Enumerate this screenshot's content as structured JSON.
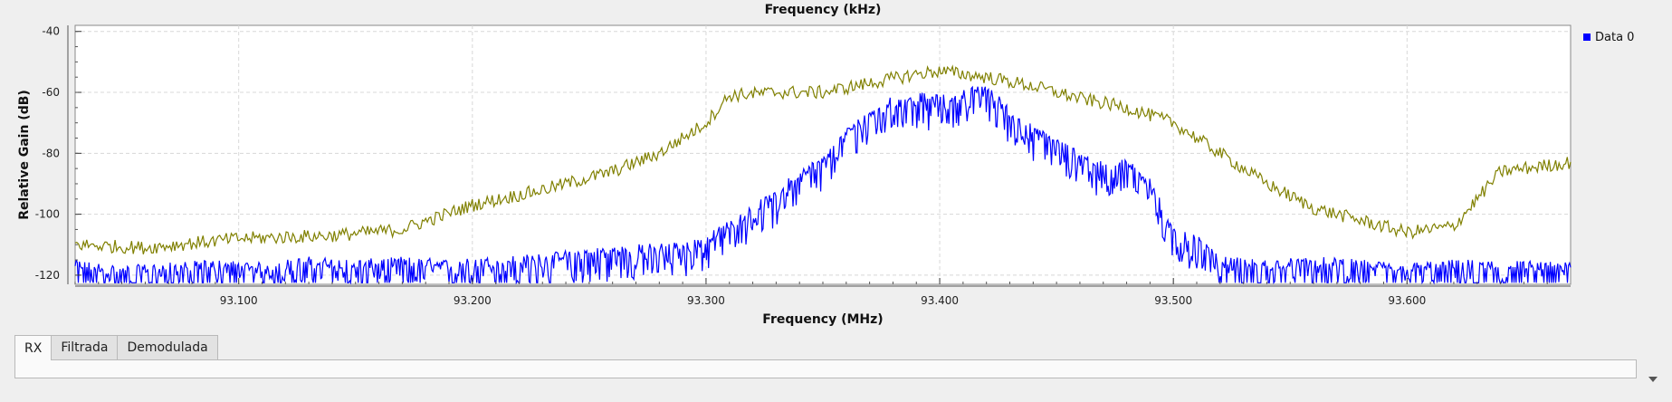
{
  "chart_data": {
    "type": "line",
    "title": "Frequency (kHz)",
    "xlabel": "Frequency (MHz)",
    "ylabel": "Relative Gain (dB)",
    "xlim": [
      93.03,
      93.67
    ],
    "ylim": [
      -123,
      -38
    ],
    "x_ticks": [
      93.1,
      93.2,
      93.3,
      93.4,
      93.5,
      93.6
    ],
    "x_tick_labels": [
      "93.100",
      "93.200",
      "93.300",
      "93.400",
      "93.500",
      "93.600"
    ],
    "y_ticks": [
      -40,
      -60,
      -80,
      -100,
      -120
    ],
    "y_tick_labels": [
      "-40",
      "-60",
      "-80",
      "-100",
      "-120"
    ],
    "grid": true,
    "legend": {
      "placement": "top-right",
      "entries": [
        "Data 0"
      ]
    },
    "series": [
      {
        "name": "Data 0",
        "color": "#0000ff",
        "x": [
          93.03,
          93.05,
          93.07,
          93.09,
          93.11,
          93.13,
          93.15,
          93.17,
          93.19,
          93.21,
          93.23,
          93.25,
          93.27,
          93.29,
          93.3,
          93.31,
          93.32,
          93.33,
          93.34,
          93.35,
          93.36,
          93.37,
          93.38,
          93.39,
          93.4,
          93.41,
          93.42,
          93.43,
          93.44,
          93.45,
          93.46,
          93.47,
          93.48,
          93.49,
          93.5,
          93.51,
          93.52,
          93.54,
          93.56,
          93.58,
          93.6,
          93.62,
          93.64,
          93.67
        ],
        "y": [
          -118,
          -120,
          -119,
          -118,
          -119,
          -117,
          -118,
          -117,
          -118,
          -117,
          -116,
          -114,
          -113,
          -112,
          -110,
          -105,
          -100,
          -95,
          -88,
          -84,
          -75,
          -68,
          -64,
          -63,
          -64,
          -62,
          -60,
          -68,
          -74,
          -78,
          -82,
          -86,
          -85,
          -90,
          -108,
          -110,
          -117,
          -118,
          -117,
          -118,
          -119,
          -118,
          -118,
          -119
        ]
      },
      {
        "name": "",
        "color": "#808000",
        "x": [
          93.03,
          93.06,
          93.1,
          93.14,
          93.17,
          93.2,
          93.23,
          93.26,
          93.28,
          93.3,
          93.31,
          93.33,
          93.35,
          93.37,
          93.39,
          93.4,
          93.42,
          93.44,
          93.46,
          93.48,
          93.5,
          93.52,
          93.54,
          93.56,
          93.58,
          93.6,
          93.62,
          93.64,
          93.67
        ],
        "y": [
          -110,
          -111,
          -108,
          -107,
          -105,
          -97,
          -92,
          -86,
          -80,
          -70,
          -61,
          -60,
          -60,
          -57,
          -54,
          -53,
          -55,
          -58,
          -62,
          -65,
          -70,
          -80,
          -90,
          -98,
          -102,
          -106,
          -104,
          -86,
          -83
        ]
      }
    ]
  },
  "tabs": [
    {
      "label": "RX",
      "active": true
    },
    {
      "label": "Filtrada",
      "active": false
    },
    {
      "label": "Demodulada",
      "active": false
    }
  ]
}
